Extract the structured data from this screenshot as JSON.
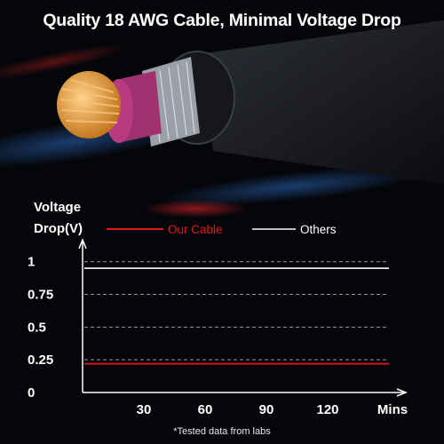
{
  "headline": "Quality 18 AWG Cable, Minimal Voltage Drop",
  "footnote": "*Tested data from labs",
  "colors": {
    "background": "#05060a",
    "accent_red": "#e0141b",
    "others_white": "#ffffff",
    "insulation_magenta": "#a0306e",
    "copper": "#e8a54a"
  },
  "illustration": {
    "icon": "cable-cross-section-icon"
  },
  "chart_data": {
    "type": "line",
    "ylabel": [
      "Voltage",
      "Drop(V)"
    ],
    "xunit": "Mins",
    "x": [
      30,
      60,
      90,
      120
    ],
    "xlim": [
      0,
      150
    ],
    "yticks": [
      "0",
      "0.25",
      "0.5",
      "0.75",
      "1"
    ],
    "ylim": [
      0,
      1.1
    ],
    "grid": "dashed-horizontal",
    "legend_placement": "top",
    "series": [
      {
        "name": "Our Cable",
        "color": "#e0141b",
        "values": [
          0.22,
          0.22,
          0.22,
          0.22
        ]
      },
      {
        "name": "Others",
        "color": "#ffffff",
        "values": [
          0.95,
          0.95,
          0.95,
          0.95
        ]
      }
    ]
  }
}
